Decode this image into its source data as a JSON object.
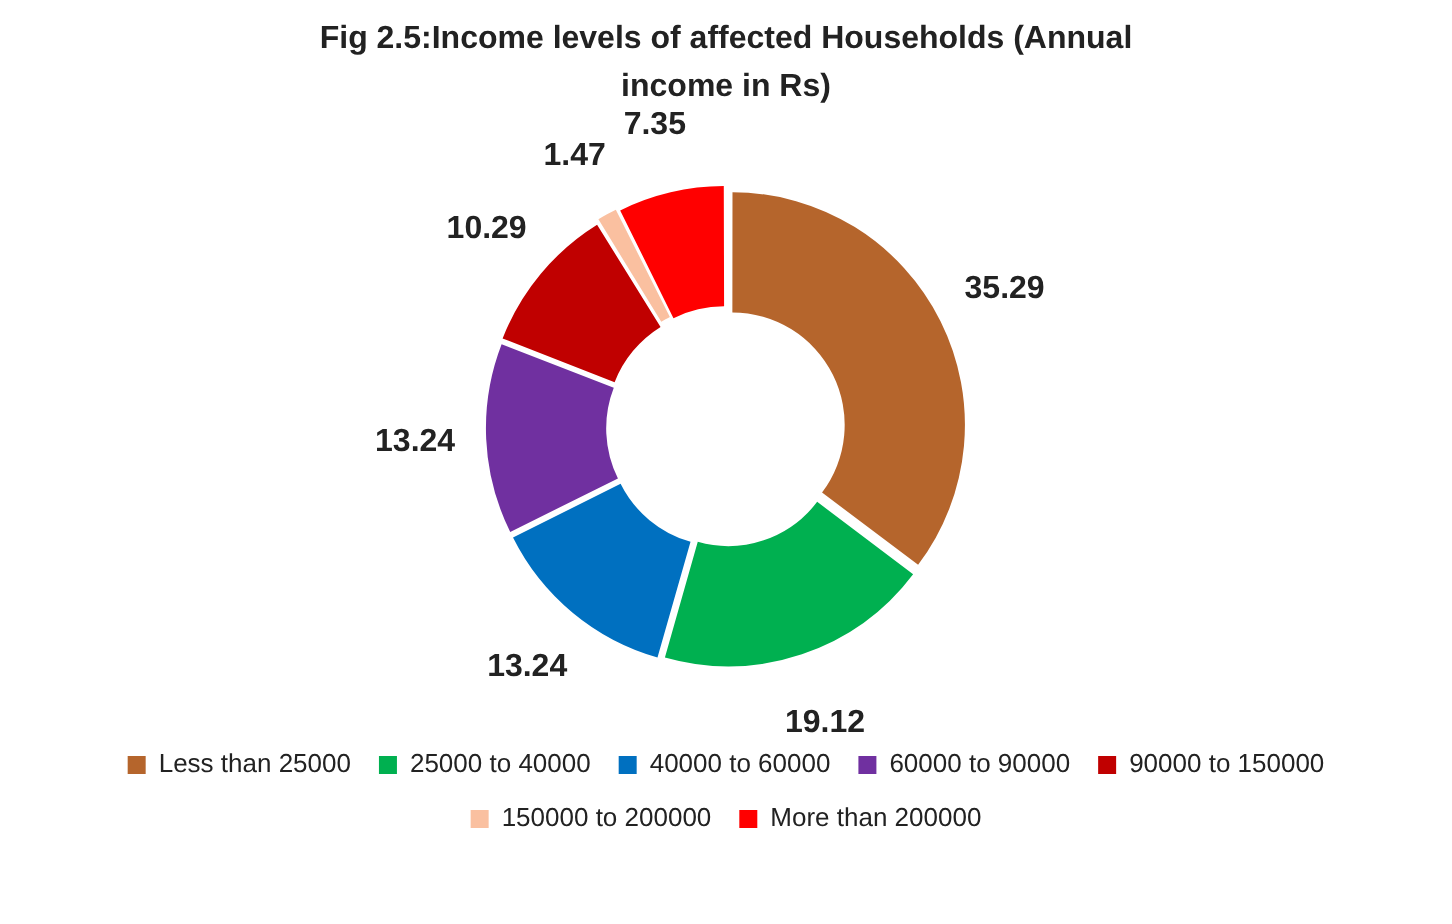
{
  "chart_data": {
    "type": "donut",
    "title": "Fig 2.5:Income levels of affected Households (Annual income in Rs)",
    "categories": [
      "Less than 25000",
      "25000 to 40000",
      "40000 to 60000",
      "60000 to 90000",
      "90000 to 150000",
      "150000 to 200000",
      "More than 200000"
    ],
    "values": [
      35.29,
      19.12,
      13.24,
      13.24,
      10.29,
      1.47,
      7.35
    ],
    "colors": [
      "#b5652c",
      "#00b050",
      "#0070c0",
      "#7030a0",
      "#c00000",
      "#fac0a0",
      "#ff0000"
    ],
    "data_labels": true,
    "legend": "bottom"
  }
}
